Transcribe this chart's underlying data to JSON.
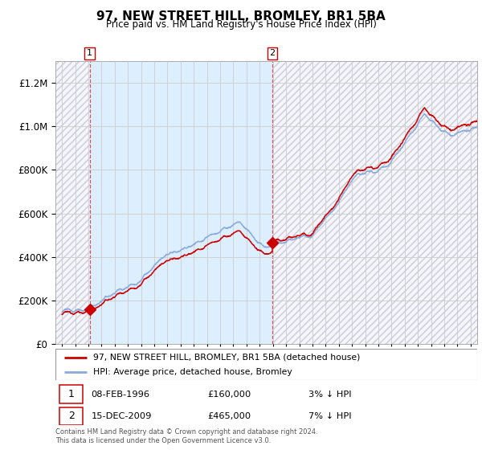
{
  "title": "97, NEW STREET HILL, BROMLEY, BR1 5BA",
  "subtitle": "Price paid vs. HM Land Registry's House Price Index (HPI)",
  "legend_line1": "97, NEW STREET HILL, BROMLEY, BR1 5BA (detached house)",
  "legend_line2": "HPI: Average price, detached house, Bromley",
  "transaction1_date": "08-FEB-1996",
  "transaction1_price": "£160,000",
  "transaction1_note": "3% ↓ HPI",
  "transaction2_date": "15-DEC-2009",
  "transaction2_price": "£465,000",
  "transaction2_note": "7% ↓ HPI",
  "transaction1_year": 1996.1,
  "transaction2_year": 2009.96,
  "transaction1_value": 160000,
  "transaction2_value": 465000,
  "ylim_max": 1300000,
  "xlim_start": 1993.5,
  "xlim_end": 2025.5,
  "red_color": "#cc0000",
  "blue_color": "#88aadd",
  "bg_shaded_color": "#ddeeff",
  "bg_unshaded_color": "#f5f5ff",
  "hatch_color": "#cccccc",
  "grid_color": "#cccccc",
  "footer": "Contains HM Land Registry data © Crown copyright and database right 2024.\nThis data is licensed under the Open Government Licence v3.0."
}
